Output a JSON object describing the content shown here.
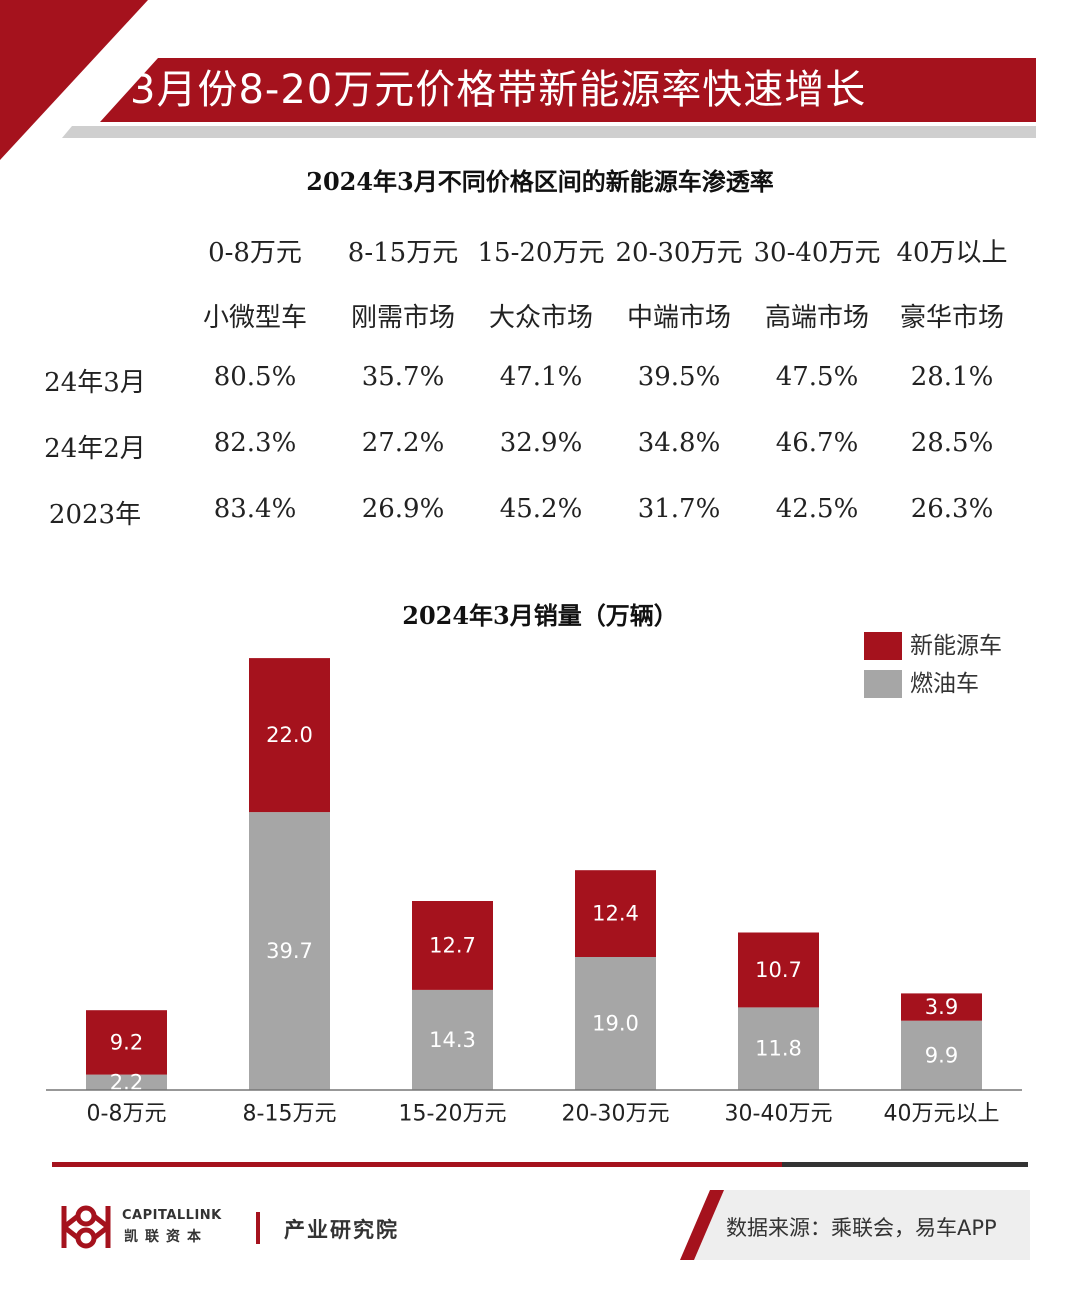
{
  "header": {
    "title": "3月份8-20万元价格带新能源率快速增长"
  },
  "table": {
    "title": "2024年3月不同价格区间的新能源车渗透率",
    "price_ranges": [
      "0-8万元",
      "8-15万元",
      "15-20万元",
      "20-30万元",
      "30-40万元",
      "40万以上"
    ],
    "segments": [
      "小微型车",
      "刚需市场",
      "大众市场",
      "中端市场",
      "高端市场",
      "豪华市场"
    ],
    "rows": [
      {
        "label": "24年3月",
        "values": [
          "80.5%",
          "35.7%",
          "47.1%",
          "39.5%",
          "47.5%",
          "28.1%"
        ]
      },
      {
        "label": "24年2月",
        "values": [
          "82.3%",
          "27.2%",
          "32.9%",
          "34.8%",
          "46.7%",
          "28.5%"
        ]
      },
      {
        "label": "2023年",
        "values": [
          "83.4%",
          "26.9%",
          "45.2%",
          "31.7%",
          "42.5%",
          "26.3%"
        ]
      }
    ]
  },
  "chart_data": {
    "type": "bar",
    "stacked": true,
    "title": "2024年3月销量（万辆）",
    "categories": [
      "0-8万元",
      "8-15万元",
      "15-20万元",
      "20-30万元",
      "30-40万元",
      "40万元以上"
    ],
    "series": [
      {
        "name": "燃油车",
        "values": [
          2.2,
          39.7,
          14.3,
          19.0,
          11.8,
          9.9
        ],
        "color": "#a6a6a6"
      },
      {
        "name": "新能源车",
        "values": [
          9.2,
          22.0,
          12.7,
          12.4,
          10.7,
          3.9
        ],
        "color": "#a5121d"
      }
    ],
    "legend_order": [
      "新能源车",
      "燃油车"
    ],
    "legend_position": "top-right",
    "grid": false
  },
  "footer": {
    "logo_en": "CAPITALLINK",
    "logo_cn": "凯联资本",
    "institute": "产业研究院",
    "source": "数据来源：乘联会，易车APP"
  },
  "colors": {
    "accent": "#a5121d",
    "gray": "#a6a6a6"
  }
}
